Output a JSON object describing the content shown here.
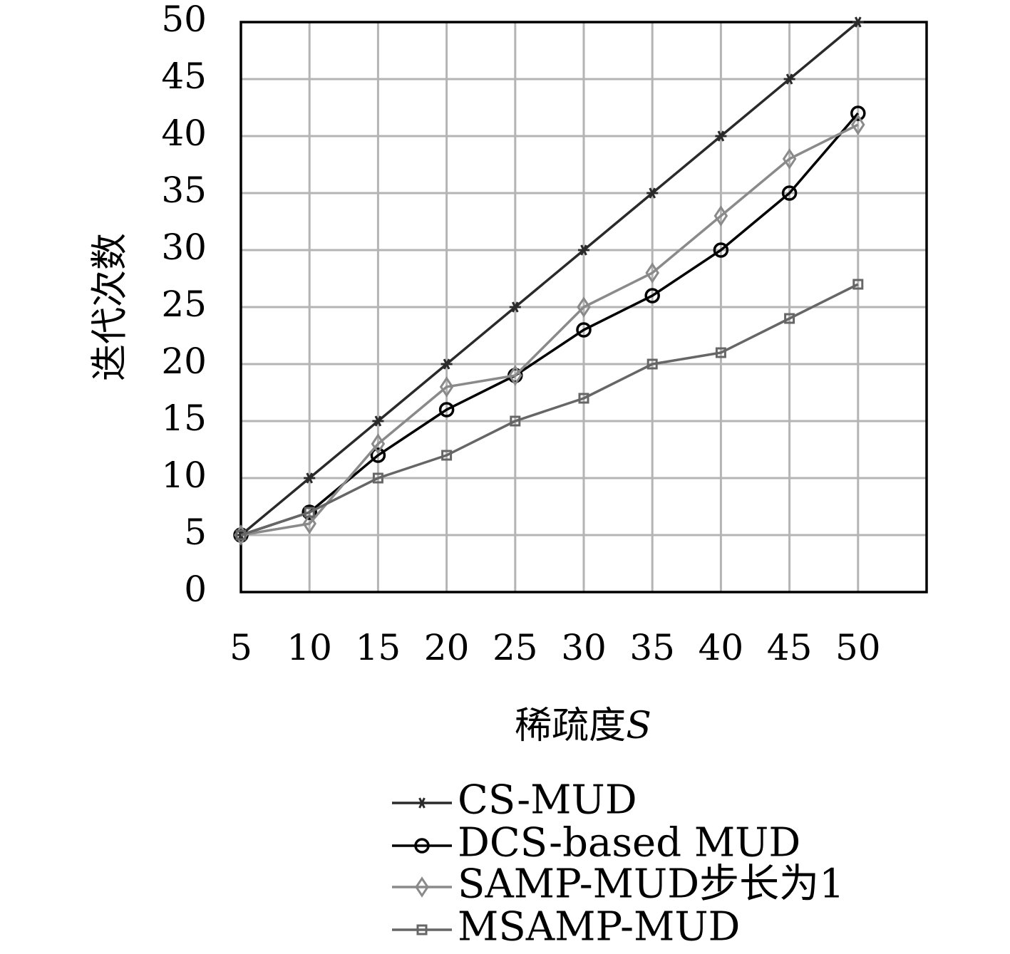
{
  "chart_data": {
    "type": "line",
    "xlabel_text": "稀疏度",
    "xlabel_var": "S",
    "ylabel": "迭代次数",
    "x": [
      5,
      10,
      15,
      20,
      25,
      30,
      35,
      40,
      45,
      50
    ],
    "xlim": [
      5,
      55
    ],
    "ylim": [
      0,
      50
    ],
    "xticks": [
      5,
      10,
      15,
      20,
      25,
      30,
      35,
      40,
      45,
      50
    ],
    "yticks": [
      0,
      5,
      10,
      15,
      20,
      25,
      30,
      35,
      40,
      45,
      50
    ],
    "grid": true,
    "legend_position": "bottom",
    "series": [
      {
        "name": "CS-MUD",
        "marker": "star",
        "color": "#2a2a2a",
        "values": [
          5,
          10,
          15,
          20,
          25,
          30,
          35,
          40,
          45,
          50
        ]
      },
      {
        "name": "DCS-based MUD",
        "marker": "circle",
        "color": "#000000",
        "values": [
          5,
          7,
          12,
          16,
          19,
          23,
          26,
          30,
          35,
          42
        ]
      },
      {
        "name": "SAMP-MUD步长为1",
        "marker": "diamond",
        "color": "#8a8a8a",
        "values": [
          5,
          6,
          13,
          18,
          19,
          25,
          28,
          33,
          38,
          41
        ]
      },
      {
        "name": "MSAMP-MUD",
        "marker": "square",
        "color": "#666666",
        "values": [
          5,
          7,
          10,
          12,
          15,
          17,
          20,
          21,
          24,
          27
        ]
      }
    ]
  }
}
